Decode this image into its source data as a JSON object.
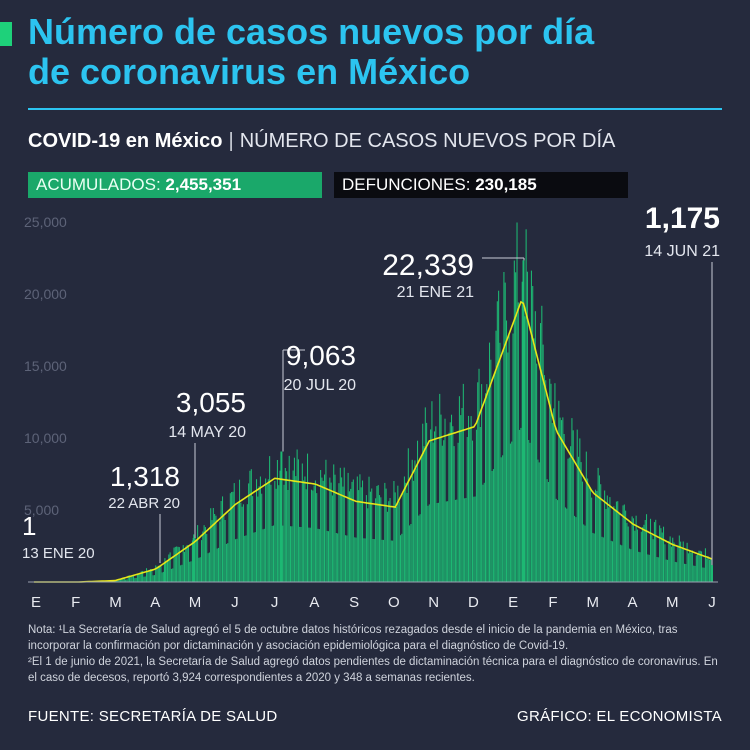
{
  "title_lines": [
    "Número de casos nuevos por día",
    "de coronavirus en México"
  ],
  "subtitle": {
    "bold": "COVID-19 en México",
    "sep": "|",
    "rest": "NÚMERO DE CASOS NUEVOS POR DÍA"
  },
  "totals": {
    "acumulados_label": "ACUMULADOS:",
    "acumulados_value": "2,455,351",
    "defunciones_label": "DEFUNCIONES:",
    "defunciones_value": "230,185"
  },
  "note": {
    "line1": "Nota: ¹La Secretaría de Salud agregó el 5 de octubre datos históricos rezagados desde el inicio de la pandemia en México, tras incorporar la confirmación por dictaminación y asociación epidemiológica para el diagnóstico de Covid-19.",
    "line2": "²El 1 de junio de 2021, la Secretaría de Salud agregó datos pendientes de dictaminación técnica para el diagnóstico de coronavirus. En el caso de decesos, reportó 3,924 correspondientes a 2020 y 348 a semanas recientes."
  },
  "footer": {
    "source": "FUENTE: SECRETARÍA DE SALUD",
    "credit": "GRÁFICO: EL ECONOMISTA"
  },
  "colors": {
    "bars": "#1db873",
    "trend": "#e6e619",
    "title": "#2cc4f0",
    "background": "#252a3d"
  },
  "chart_data": {
    "type": "bar",
    "ylim": [
      0,
      25000
    ],
    "yticks": [
      "25,000",
      "20,000",
      "15,000",
      "10,000",
      "5,000"
    ],
    "ytick_values": [
      25000,
      20000,
      15000,
      10000,
      5000
    ],
    "month_labels": [
      "E",
      "F",
      "M",
      "A",
      "M",
      "J",
      "J",
      "A",
      "S",
      "O",
      "N",
      "D",
      "E",
      "F",
      "M",
      "A",
      "M",
      "J"
    ],
    "x_start": "2020-01-13",
    "x_end": "2021-06-14",
    "annotations": [
      {
        "value": "1",
        "date": "13 ENE 20",
        "x": "2020-01-13",
        "y": 1
      },
      {
        "value": "1,318",
        "date": "22 ABR 20",
        "x": "2020-04-22",
        "y": 1318
      },
      {
        "value": "3,055",
        "date": "14 MAY 20",
        "x": "2020-05-14",
        "y": 3055
      },
      {
        "value": "9,063",
        "date": "20 JUL 20",
        "x": "2020-07-20",
        "y": 9063
      },
      {
        "value": "22,339",
        "date": "21 ENE 21",
        "x": "2021-01-21",
        "y": 22339
      },
      {
        "value": "1,175",
        "date": "14 JUN 21",
        "x": "2021-06-14",
        "y": 1175
      }
    ],
    "trend_monthly": [
      {
        "x": "2020-01-13",
        "y": 0
      },
      {
        "x": "2020-02-15",
        "y": 0
      },
      {
        "x": "2020-03-15",
        "y": 100
      },
      {
        "x": "2020-04-15",
        "y": 900
      },
      {
        "x": "2020-05-15",
        "y": 2800
      },
      {
        "x": "2020-06-15",
        "y": 5400
      },
      {
        "x": "2020-07-15",
        "y": 7200
      },
      {
        "x": "2020-08-15",
        "y": 6800
      },
      {
        "x": "2020-09-15",
        "y": 5600
      },
      {
        "x": "2020-10-15",
        "y": 5200
      },
      {
        "x": "2020-11-10",
        "y": 9800
      },
      {
        "x": "2020-12-15",
        "y": 10800
      },
      {
        "x": "2021-01-20",
        "y": 19700
      },
      {
        "x": "2021-02-15",
        "y": 10500
      },
      {
        "x": "2021-03-15",
        "y": 6200
      },
      {
        "x": "2021-04-15",
        "y": 4000
      },
      {
        "x": "2021-05-15",
        "y": 2600
      },
      {
        "x": "2021-06-14",
        "y": 1600
      }
    ]
  }
}
